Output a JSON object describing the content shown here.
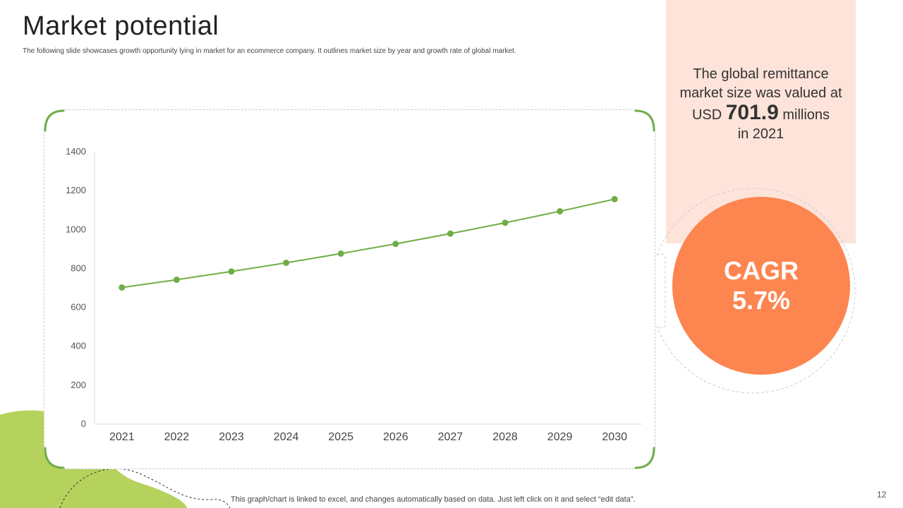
{
  "slide": {
    "title": "Market potential",
    "subtitle": "The following slide showcases growth opportunity lying in market for an ecommerce company. It outlines market size by year and growth rate of global market.",
    "footnote": "This graph/chart is linked to excel,  and changes automatically based on data. Just left click on it and select “edit data”.",
    "page_number": "12"
  },
  "fact_box": {
    "line1": "The global remittance",
    "line2": "market size was valued at",
    "prefix": "USD",
    "value": "701.9",
    "suffix": "millions",
    "line4": "in 2021"
  },
  "cagr": {
    "label": "CAGR",
    "value": "5.7%"
  },
  "colors": {
    "line": "#70ad47",
    "accent_green": "#b5d25c",
    "cagr_circle": "#fd8550",
    "panel": "#fde3d9"
  },
  "chart_data": {
    "type": "line",
    "categories": [
      "2021",
      "2022",
      "2023",
      "2024",
      "2025",
      "2026",
      "2027",
      "2028",
      "2029",
      "2030"
    ],
    "values": [
      701.9,
      741.9,
      784.2,
      828.9,
      876.2,
      926.1,
      978.9,
      1034.7,
      1093.7,
      1156.0
    ],
    "title": "",
    "xlabel": "",
    "ylabel": "",
    "ylim": [
      0,
      1400
    ],
    "yticks": [
      0,
      200,
      400,
      600,
      800,
      1000,
      1200,
      1400
    ],
    "grid": false,
    "legend": "none"
  }
}
